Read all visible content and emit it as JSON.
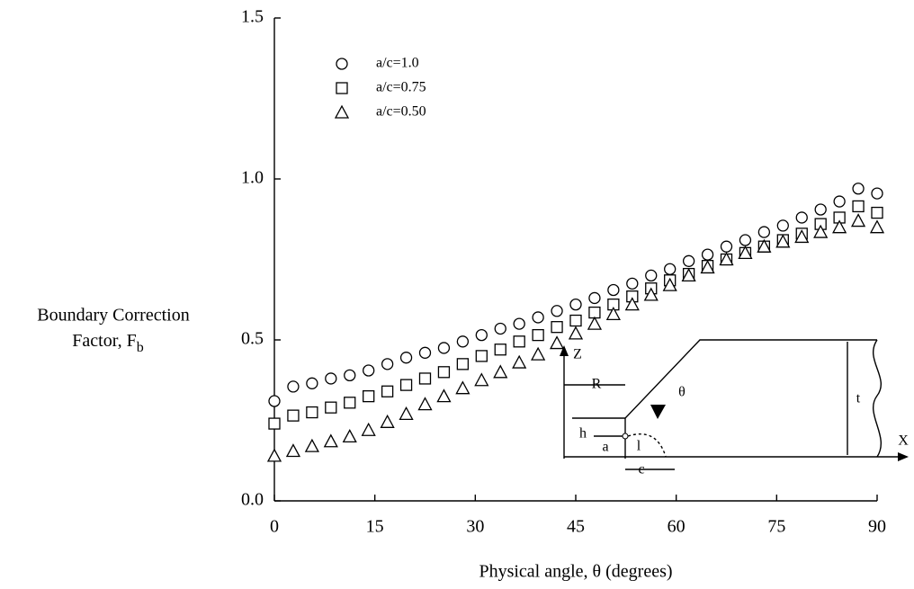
{
  "chart_data": {
    "type": "scatter",
    "xlabel": "Physical angle, θ (degrees)",
    "ylabel": [
      "Boundary Correction",
      "Factor, F"
    ],
    "ylabel_subscript": "b",
    "xlim": [
      0,
      90
    ],
    "ylim": [
      0,
      1.5
    ],
    "xticks": [
      0,
      15,
      30,
      45,
      60,
      75,
      90
    ],
    "yticks": [
      {
        "value": 0,
        "label": "0.0"
      },
      0.5,
      {
        "value": 1,
        "label": "1.0"
      },
      1.5
    ],
    "legend": "upper-left",
    "x": [
      0,
      2.8125,
      5.625,
      8.4375,
      11.25,
      14.0625,
      16.875,
      19.6875,
      22.5,
      25.3125,
      28.125,
      30.9375,
      33.75,
      36.5625,
      39.375,
      42.1875,
      45,
      47.8125,
      50.625,
      53.4375,
      56.25,
      59.0625,
      61.875,
      64.6875,
      67.5,
      70.3125,
      73.125,
      75.9375,
      78.75,
      81.5625,
      84.375,
      87.1875,
      90
    ],
    "series": [
      {
        "name": "a/c=1.0",
        "marker": "circle",
        "color": "#000000",
        "values": [
          0.31,
          0.355,
          0.365,
          0.38,
          0.39,
          0.405,
          0.425,
          0.445,
          0.46,
          0.475,
          0.495,
          0.515,
          0.535,
          0.55,
          0.57,
          0.59,
          0.61,
          0.63,
          0.655,
          0.675,
          0.7,
          0.72,
          0.745,
          0.765,
          0.79,
          0.81,
          0.835,
          0.855,
          0.88,
          0.905,
          0.93,
          0.97,
          0.955
        ]
      },
      {
        "name": "a/c=0.75",
        "marker": "square",
        "color": "#000000",
        "values": [
          0.24,
          0.265,
          0.275,
          0.29,
          0.305,
          0.325,
          0.34,
          0.36,
          0.38,
          0.4,
          0.425,
          0.45,
          0.47,
          0.495,
          0.515,
          0.54,
          0.56,
          0.585,
          0.61,
          0.635,
          0.66,
          0.685,
          0.705,
          0.73,
          0.75,
          0.77,
          0.79,
          0.81,
          0.83,
          0.86,
          0.88,
          0.915,
          0.895
        ]
      },
      {
        "name": "a/c=0.50",
        "marker": "triangle",
        "color": "#000000",
        "values": [
          0.14,
          0.155,
          0.17,
          0.185,
          0.2,
          0.22,
          0.245,
          0.27,
          0.3,
          0.325,
          0.35,
          0.375,
          0.4,
          0.43,
          0.455,
          0.49,
          0.52,
          0.55,
          0.58,
          0.61,
          0.64,
          0.67,
          0.7,
          0.725,
          0.75,
          0.77,
          0.79,
          0.805,
          0.82,
          0.835,
          0.85,
          0.87,
          0.85
        ]
      }
    ],
    "inset": {
      "labels": [
        "Z",
        "R",
        "h",
        "a",
        "θ",
        "l",
        "t",
        "X",
        "c"
      ]
    }
  }
}
